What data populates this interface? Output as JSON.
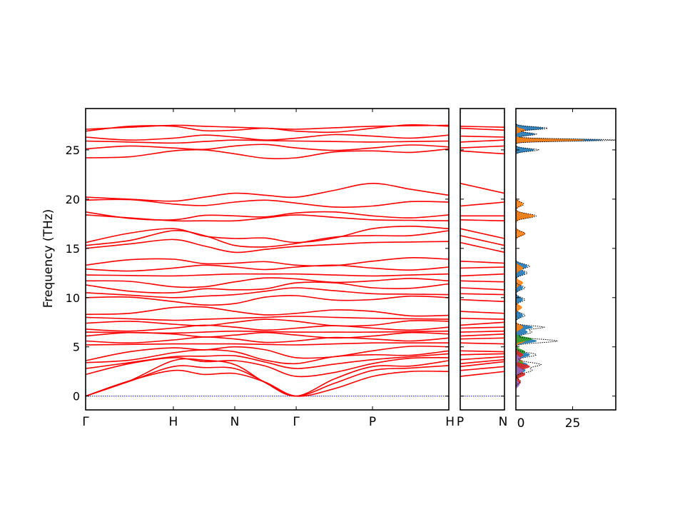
{
  "chart_data": [
    {
      "type": "line",
      "panel": "band-structure-main",
      "ylabel": "Frequency (THz)",
      "ylim": [
        -1.4,
        29.2
      ],
      "yticks": [
        0,
        5,
        10,
        15,
        20,
        25
      ],
      "x_labels": [
        "Γ",
        "H",
        "N",
        "Γ",
        "P",
        "H"
      ],
      "segments": [
        "Γ-H",
        "H-N",
        "N-Γ",
        "Γ-P",
        "P-H"
      ],
      "segment_widths": [
        1.0,
        0.7,
        0.7,
        0.87,
        0.87
      ],
      "line_color": "#ff0000",
      "zero_line_color": "#0000cc",
      "band_anchor_frequencies": [
        [
          0,
          2.6,
          2.3,
          0,
          2.0,
          2.5
        ],
        [
          0,
          3.0,
          2.8,
          0,
          2.6,
          3.1
        ],
        [
          0,
          3.6,
          3.2,
          0,
          3.0,
          3.6
        ],
        [
          2.2,
          3.9,
          3.6,
          2.0,
          3.3,
          3.9
        ],
        [
          2.8,
          4.0,
          4.1,
          2.8,
          3.7,
          4.3
        ],
        [
          3.4,
          4.4,
          4.5,
          3.3,
          4.2,
          4.6
        ],
        [
          3.6,
          4.9,
          5.0,
          3.9,
          4.6,
          5.0
        ],
        [
          5.2,
          5.3,
          5.3,
          5.2,
          5.4,
          5.4
        ],
        [
          5.6,
          5.7,
          5.8,
          5.6,
          5.8,
          5.9
        ],
        [
          6.1,
          6.3,
          6.2,
          6.2,
          6.1,
          6.3
        ],
        [
          6.5,
          6.4,
          6.6,
          6.5,
          6.5,
          6.6
        ],
        [
          6.8,
          6.9,
          7.0,
          6.9,
          6.9,
          7.0
        ],
        [
          7.4,
          7.3,
          7.5,
          7.6,
          7.2,
          7.6
        ],
        [
          8.0,
          7.7,
          7.9,
          8.1,
          7.9,
          7.8
        ],
        [
          8.3,
          9.0,
          8.6,
          8.4,
          8.6,
          8.2
        ],
        [
          10.0,
          9.6,
          9.4,
          10.2,
          9.8,
          10.0
        ],
        [
          10.5,
          10.0,
          10.3,
          11.0,
          10.4,
          10.3
        ],
        [
          11.3,
          10.5,
          10.8,
          11.5,
          11.0,
          11.4
        ],
        [
          11.7,
          11.1,
          11.6,
          11.9,
          11.7,
          11.7
        ],
        [
          12.3,
          12.2,
          12.4,
          12.4,
          12.2,
          12.4
        ],
        [
          12.9,
          13.0,
          13.1,
          13.1,
          13.0,
          13.1
        ],
        [
          13.3,
          13.9,
          13.5,
          13.3,
          13.7,
          13.9
        ],
        [
          15.0,
          15.9,
          14.6,
          15.2,
          15.6,
          15.7
        ],
        [
          15.3,
          16.8,
          15.3,
          15.5,
          16.3,
          16.8
        ],
        [
          15.6,
          17.0,
          16.0,
          15.6,
          17.0,
          17.0
        ],
        [
          18.4,
          17.8,
          17.8,
          18.4,
          17.9,
          17.8
        ],
        [
          18.7,
          17.9,
          18.3,
          18.6,
          18.3,
          18.4
        ],
        [
          19.9,
          19.5,
          19.7,
          19.6,
          19.3,
          19.7
        ],
        [
          20.2,
          19.8,
          20.6,
          20.2,
          21.6,
          20.4
        ],
        [
          24.2,
          24.9,
          24.6,
          24.2,
          24.9,
          25.1
        ],
        [
          25.1,
          25.2,
          25.4,
          25.2,
          25.2,
          25.3
        ],
        [
          25.9,
          25.7,
          26.0,
          25.9,
          25.8,
          25.9
        ],
        [
          26.3,
          26.2,
          26.3,
          26.2,
          26.4,
          26.5
        ],
        [
          26.9,
          27.4,
          27.0,
          26.9,
          27.2,
          27.4
        ],
        [
          27.1,
          27.5,
          27.3,
          27.1,
          27.4,
          27.5
        ]
      ]
    },
    {
      "type": "line",
      "panel": "band-structure-side",
      "x_labels": [
        "P",
        "N"
      ],
      "line_color": "#ff0000",
      "band_anchor_frequencies": [
        [
          2.0,
          2.5
        ],
        [
          2.6,
          3.0
        ],
        [
          3.0,
          3.5
        ],
        [
          3.3,
          3.7
        ],
        [
          3.7,
          4.0
        ],
        [
          4.2,
          4.3
        ],
        [
          4.6,
          4.5
        ],
        [
          5.4,
          5.3
        ],
        [
          5.8,
          5.9
        ],
        [
          6.1,
          6.3
        ],
        [
          6.5,
          6.6
        ],
        [
          6.9,
          7.0
        ],
        [
          7.2,
          7.5
        ],
        [
          7.9,
          7.8
        ],
        [
          8.6,
          8.4
        ],
        [
          9.8,
          9.6
        ],
        [
          10.4,
          10.3
        ],
        [
          11.0,
          10.8
        ],
        [
          11.7,
          11.6
        ],
        [
          12.2,
          12.4
        ],
        [
          13.0,
          13.1
        ],
        [
          13.7,
          13.5
        ],
        [
          15.6,
          14.6
        ],
        [
          16.3,
          15.3
        ],
        [
          17.0,
          16.0
        ],
        [
          17.9,
          17.8
        ],
        [
          18.3,
          18.3
        ],
        [
          19.3,
          19.7
        ],
        [
          21.6,
          20.6
        ],
        [
          24.9,
          24.6
        ],
        [
          25.2,
          25.4
        ],
        [
          25.8,
          26.0
        ],
        [
          26.4,
          26.3
        ],
        [
          27.2,
          27.0
        ],
        [
          27.4,
          27.3
        ]
      ]
    },
    {
      "type": "area",
      "panel": "dos",
      "xticks": [
        0,
        25
      ],
      "xlim": [
        0,
        44
      ],
      "series": [
        {
          "color": "#1f77b4",
          "peaks": [
            [
              26.0,
              38.0,
              0.15
            ],
            [
              27.2,
              12.0,
              0.2
            ],
            [
              26.6,
              8.0,
              0.2
            ],
            [
              25.0,
              8.0,
              0.2
            ],
            [
              18.3,
              6.0,
              0.3
            ],
            [
              13.2,
              5.0,
              0.3
            ],
            [
              12.5,
              4.0,
              0.3
            ],
            [
              11.0,
              3.0,
              0.3
            ],
            [
              9.8,
              3.0,
              0.3
            ],
            [
              8.2,
              3.0,
              0.3
            ],
            [
              7.0,
              7.0,
              0.2
            ],
            [
              6.5,
              5.0,
              0.3
            ],
            [
              5.6,
              9.0,
              0.25
            ],
            [
              4.2,
              6.0,
              0.3
            ],
            [
              3.2,
              5.0,
              0.3
            ],
            [
              2.6,
              4.0,
              0.3
            ]
          ]
        },
        {
          "color": "#ff7f0e",
          "peaks": [
            [
              26.0,
              30.0,
              0.15
            ],
            [
              27.0,
              4.0,
              0.2
            ],
            [
              18.3,
              8.0,
              0.3
            ],
            [
              16.5,
              4.0,
              0.3
            ],
            [
              19.5,
              3.0,
              0.3
            ],
            [
              13.0,
              3.0,
              0.3
            ],
            [
              11.5,
              3.0,
              0.3
            ],
            [
              9.0,
              2.5,
              0.3
            ],
            [
              7.0,
              3.0,
              0.3
            ],
            [
              5.6,
              4.0,
              0.25
            ],
            [
              3.5,
              3.0,
              0.3
            ]
          ]
        },
        {
          "color": "#2ca02c",
          "peaks": [
            [
              5.8,
              7.0,
              0.25
            ],
            [
              4.5,
              4.0,
              0.3
            ],
            [
              3.3,
              3.0,
              0.3
            ],
            [
              2.2,
              2.0,
              0.3
            ]
          ]
        },
        {
          "color": "#d62728",
          "peaks": [
            [
              3.0,
              6.0,
              0.3
            ],
            [
              2.2,
              4.0,
              0.3
            ],
            [
              1.4,
              2.0,
              0.3
            ],
            [
              4.2,
              3.0,
              0.3
            ]
          ]
        },
        {
          "color": "#9467bd",
          "peaks": [
            [
              2.6,
              3.0,
              0.3
            ],
            [
              1.2,
              1.5,
              0.3
            ],
            [
              3.8,
              2.0,
              0.3
            ]
          ]
        }
      ],
      "total_peaks": [
        [
          26.0,
          44.0,
          0.15
        ],
        [
          27.2,
          14.0,
          0.2
        ],
        [
          26.6,
          9.0,
          0.2
        ],
        [
          25.0,
          10.0,
          0.2
        ],
        [
          18.3,
          9.0,
          0.3
        ],
        [
          16.5,
          4.0,
          0.3
        ],
        [
          19.5,
          3.5,
          0.3
        ],
        [
          13.2,
          6.0,
          0.3
        ],
        [
          12.5,
          5.0,
          0.3
        ],
        [
          11.0,
          4.0,
          0.3
        ],
        [
          9.8,
          4.0,
          0.3
        ],
        [
          8.2,
          4.0,
          0.3
        ],
        [
          7.0,
          12.0,
          0.2
        ],
        [
          6.5,
          7.0,
          0.3
        ],
        [
          5.6,
          18.0,
          0.25
        ],
        [
          4.2,
          9.0,
          0.3
        ],
        [
          3.2,
          11.0,
          0.3
        ],
        [
          2.6,
          7.0,
          0.3
        ],
        [
          1.5,
          2.0,
          0.3
        ]
      ]
    }
  ]
}
